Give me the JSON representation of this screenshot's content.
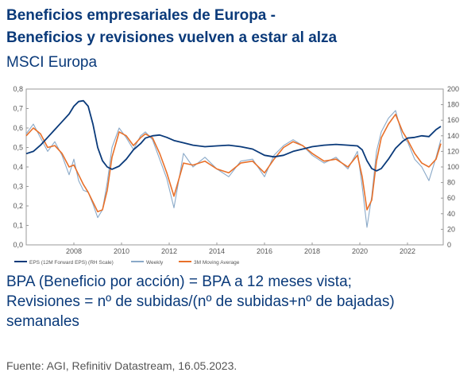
{
  "header": {
    "title_line1": "Beneficios empresariales de Europa -",
    "title_line2": "Beneficios y revisiones vuelven a estar al alza",
    "subtitle": "MSCI Europa"
  },
  "caption": {
    "line1": "BPA (Beneficio por acción) = BPA a 12 meses vista;",
    "line2": "Revisiones = nº de subidas/(nº de subidas+nº de bajadas)",
    "line3": "semanales"
  },
  "source": "Fuente: AGI, Refinitiv Datastream, 16.05.2023.",
  "colors": {
    "eps": "#0a3a7a",
    "weekly": "#8aa9c8",
    "ma": "#e8702a",
    "text": "#0a3a7a"
  },
  "chart_data": {
    "type": "line",
    "x_ticks": [
      2008,
      2010,
      2012,
      2014,
      2016,
      2018,
      2020,
      2022
    ],
    "xlim": [
      2006.0,
      2023.5
    ],
    "y_left": {
      "ticks": [
        "0,0",
        "0,1",
        "0,2",
        "0,3",
        "0,4",
        "0,5",
        "0,6",
        "0,7",
        "0,8"
      ],
      "lim": [
        0,
        0.8
      ]
    },
    "y_right": {
      "ticks": [
        "0",
        "20",
        "40",
        "60",
        "80",
        "100",
        "120",
        "140",
        "160",
        "180",
        "200"
      ],
      "lim": [
        0,
        200
      ]
    },
    "legend": {
      "position": "bottom",
      "items": [
        "EPS (12M Forward EPS) (RH Scale)",
        "Weekly",
        "3M Moving Average"
      ]
    },
    "series": [
      {
        "name": "EPS (12M Forward EPS) (RH Scale)",
        "axis": "right",
        "x": [
          2006.0,
          2006.3,
          2006.6,
          2006.9,
          2007.2,
          2007.5,
          2007.8,
          2008.0,
          2008.2,
          2008.4,
          2008.6,
          2008.8,
          2009.0,
          2009.2,
          2009.4,
          2009.6,
          2009.9,
          2010.2,
          2010.5,
          2010.8,
          2011.0,
          2011.3,
          2011.6,
          2011.9,
          2012.2,
          2012.6,
          2013.0,
          2013.5,
          2014.0,
          2014.5,
          2015.0,
          2015.5,
          2016.0,
          2016.4,
          2016.8,
          2017.2,
          2017.6,
          2018.0,
          2018.5,
          2019.0,
          2019.5,
          2019.9,
          2020.1,
          2020.3,
          2020.5,
          2020.7,
          2020.9,
          2021.2,
          2021.5,
          2021.8,
          2022.0,
          2022.3,
          2022.6,
          2022.9,
          2023.2,
          2023.4
        ],
        "values": [
          117,
          120,
          128,
          138,
          148,
          158,
          168,
          178,
          184,
          185,
          178,
          155,
          125,
          108,
          100,
          97,
          101,
          110,
          122,
          130,
          137,
          140,
          141,
          138,
          134,
          131,
          128,
          126,
          127,
          128,
          126,
          123,
          115,
          113,
          115,
          120,
          123,
          126,
          128,
          129,
          128,
          127,
          122,
          108,
          98,
          95,
          98,
          110,
          124,
          133,
          137,
          138,
          140,
          139,
          148,
          152
        ]
      },
      {
        "name": "Weekly",
        "axis": "left",
        "x": [
          2006.0,
          2006.3,
          2006.6,
          2006.9,
          2007.2,
          2007.5,
          2007.8,
          2008.0,
          2008.2,
          2008.4,
          2008.6,
          2008.8,
          2009.0,
          2009.2,
          2009.4,
          2009.6,
          2009.9,
          2010.2,
          2010.5,
          2010.8,
          2011.0,
          2011.3,
          2011.6,
          2011.9,
          2012.2,
          2012.6,
          2013.0,
          2013.5,
          2014.0,
          2014.5,
          2015.0,
          2015.5,
          2016.0,
          2016.4,
          2016.8,
          2017.2,
          2017.6,
          2018.0,
          2018.5,
          2019.0,
          2019.5,
          2019.9,
          2020.1,
          2020.3,
          2020.5,
          2020.7,
          2020.9,
          2021.2,
          2021.5,
          2021.8,
          2022.0,
          2022.3,
          2022.6,
          2022.9,
          2023.2,
          2023.4
        ],
        "values": [
          0.57,
          0.62,
          0.55,
          0.48,
          0.53,
          0.46,
          0.36,
          0.44,
          0.33,
          0.28,
          0.27,
          0.21,
          0.14,
          0.18,
          0.32,
          0.5,
          0.6,
          0.55,
          0.49,
          0.56,
          0.58,
          0.54,
          0.44,
          0.34,
          0.19,
          0.47,
          0.4,
          0.45,
          0.39,
          0.35,
          0.43,
          0.44,
          0.35,
          0.46,
          0.51,
          0.54,
          0.51,
          0.46,
          0.42,
          0.45,
          0.39,
          0.48,
          0.3,
          0.09,
          0.25,
          0.48,
          0.58,
          0.65,
          0.69,
          0.55,
          0.53,
          0.44,
          0.4,
          0.33,
          0.45,
          0.54
        ]
      },
      {
        "name": "3M Moving Average",
        "axis": "left",
        "x": [
          2006.0,
          2006.3,
          2006.6,
          2006.9,
          2007.2,
          2007.5,
          2007.8,
          2008.0,
          2008.2,
          2008.4,
          2008.6,
          2008.8,
          2009.0,
          2009.2,
          2009.4,
          2009.6,
          2009.9,
          2010.2,
          2010.5,
          2010.8,
          2011.0,
          2011.3,
          2011.6,
          2011.9,
          2012.2,
          2012.6,
          2013.0,
          2013.5,
          2014.0,
          2014.5,
          2015.0,
          2015.5,
          2016.0,
          2016.4,
          2016.8,
          2017.2,
          2017.6,
          2018.0,
          2018.5,
          2019.0,
          2019.5,
          2019.9,
          2020.1,
          2020.3,
          2020.5,
          2020.7,
          2020.9,
          2021.2,
          2021.5,
          2021.8,
          2022.0,
          2022.3,
          2022.6,
          2022.9,
          2023.2,
          2023.4
        ],
        "values": [
          0.56,
          0.6,
          0.57,
          0.5,
          0.51,
          0.47,
          0.4,
          0.41,
          0.36,
          0.31,
          0.27,
          0.22,
          0.17,
          0.18,
          0.28,
          0.45,
          0.58,
          0.56,
          0.51,
          0.55,
          0.57,
          0.55,
          0.47,
          0.37,
          0.25,
          0.42,
          0.41,
          0.43,
          0.39,
          0.37,
          0.42,
          0.43,
          0.37,
          0.44,
          0.5,
          0.53,
          0.51,
          0.47,
          0.43,
          0.44,
          0.4,
          0.46,
          0.35,
          0.18,
          0.23,
          0.43,
          0.55,
          0.62,
          0.67,
          0.58,
          0.54,
          0.47,
          0.42,
          0.4,
          0.44,
          0.52
        ]
      }
    ]
  }
}
